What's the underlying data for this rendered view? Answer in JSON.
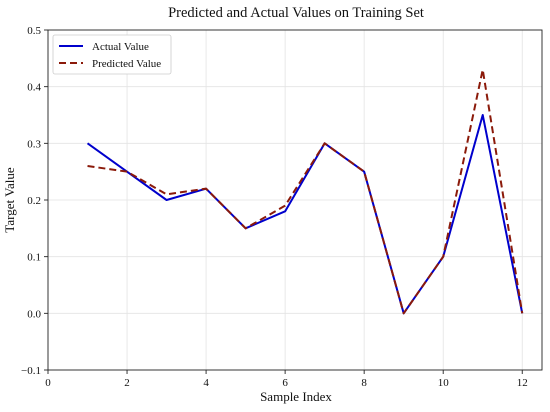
{
  "chart_data": {
    "type": "line",
    "title": "Predicted and Actual Values on Training Set",
    "xlabel": "Sample Index",
    "ylabel": "Target Value",
    "xlim": [
      0,
      12.5
    ],
    "ylim": [
      -0.1,
      0.5
    ],
    "xticks": [
      0,
      2,
      4,
      6,
      8,
      10,
      12
    ],
    "yticks": [
      -0.1,
      0.0,
      0.1,
      0.2,
      0.3,
      0.4,
      0.5
    ],
    "xtick_labels": [
      "0",
      "2",
      "4",
      "6",
      "8",
      "10",
      "12"
    ],
    "ytick_labels": [
      "−0.1",
      "0.0",
      "0.1",
      "0.2",
      "0.3",
      "0.4",
      "0.5"
    ],
    "grid": true,
    "legend_position": "top-left",
    "x": [
      1,
      2,
      3,
      4,
      5,
      6,
      7,
      8,
      9,
      10,
      11,
      12
    ],
    "series": [
      {
        "name": "Actual Value",
        "values": [
          0.3,
          0.25,
          0.2,
          0.22,
          0.15,
          0.18,
          0.3,
          0.25,
          0.0,
          0.1,
          0.35,
          0.0
        ],
        "color": "#0000cc",
        "style": "solid"
      },
      {
        "name": "Predicted Value",
        "values": [
          0.26,
          0.25,
          0.21,
          0.22,
          0.15,
          0.19,
          0.3,
          0.25,
          0.0,
          0.1,
          0.43,
          0.0
        ],
        "color": "#8b1a0a",
        "style": "dashed"
      }
    ]
  }
}
